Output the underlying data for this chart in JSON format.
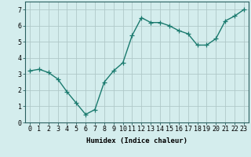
{
  "x": [
    0,
    1,
    2,
    3,
    4,
    5,
    6,
    7,
    8,
    9,
    10,
    11,
    12,
    13,
    14,
    15,
    16,
    17,
    18,
    19,
    20,
    21,
    22,
    23
  ],
  "y": [
    3.2,
    3.3,
    3.1,
    2.7,
    1.9,
    1.2,
    0.5,
    0.8,
    2.5,
    3.2,
    3.7,
    5.4,
    6.5,
    6.2,
    6.2,
    6.0,
    5.7,
    5.5,
    4.8,
    4.8,
    5.2,
    6.3,
    6.6,
    7.0
  ],
  "line_color": "#1a7a6e",
  "marker": "+",
  "marker_size": 4,
  "bg_color": "#d4eded",
  "grid_color": "#b0c8c8",
  "xlabel": "Humidex (Indice chaleur)",
  "ylim": [
    0,
    7.5
  ],
  "xlim": [
    -0.5,
    23.5
  ],
  "xticks": [
    0,
    1,
    2,
    3,
    4,
    5,
    6,
    7,
    8,
    9,
    10,
    11,
    12,
    13,
    14,
    15,
    16,
    17,
    18,
    19,
    20,
    21,
    22,
    23
  ],
  "yticks": [
    0,
    1,
    2,
    3,
    4,
    5,
    6,
    7
  ],
  "xlabel_fontsize": 6.5,
  "tick_fontsize": 6,
  "line_width": 1.0,
  "marker_edge_width": 0.9
}
